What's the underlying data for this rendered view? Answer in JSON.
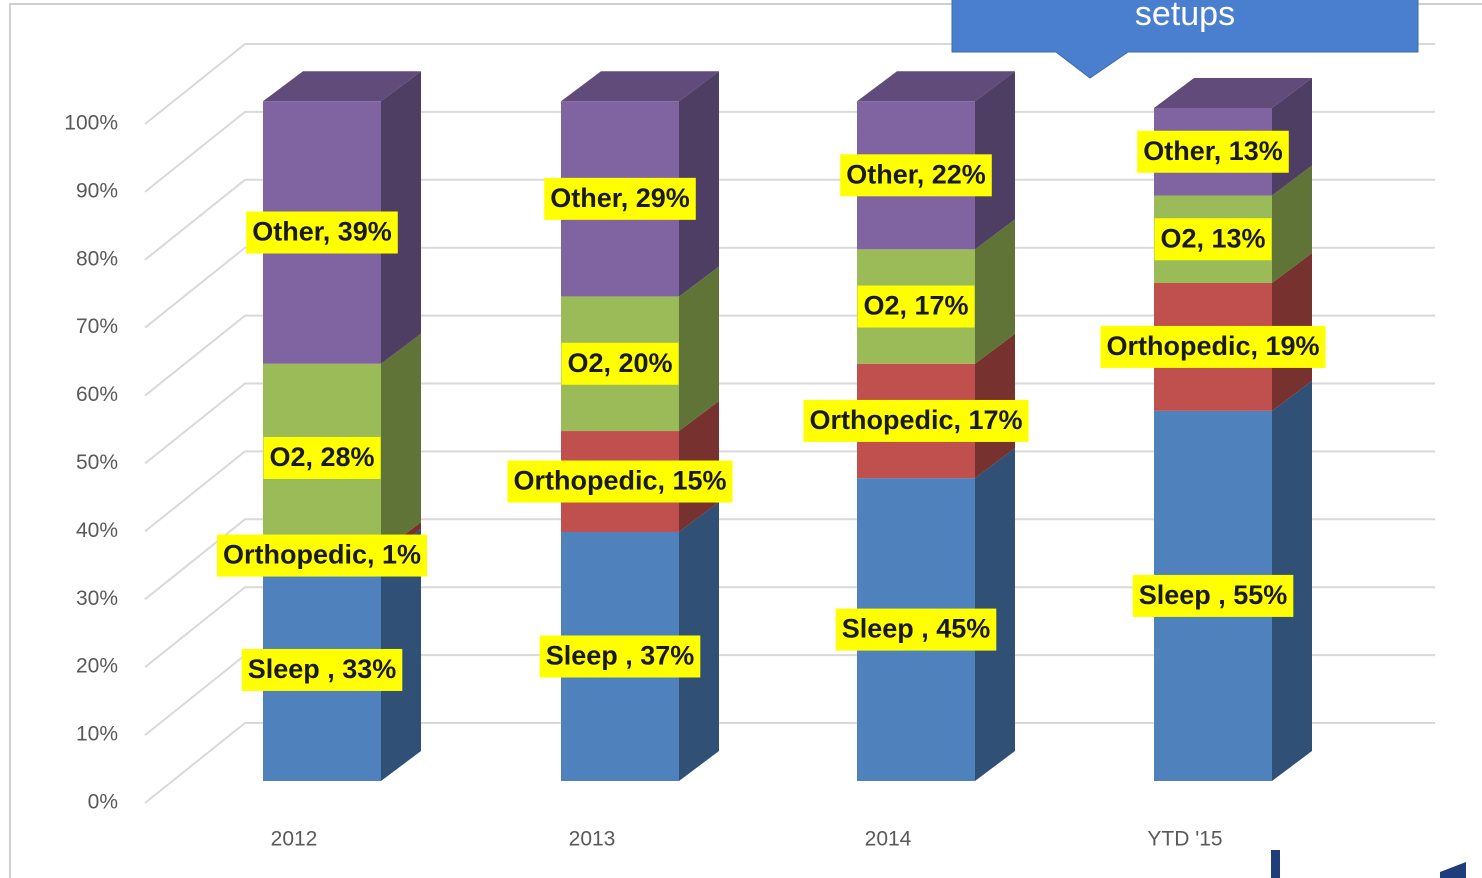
{
  "chart_data": {
    "type": "bar3d_stacked",
    "annotation": "setups",
    "categories": [
      "2012",
      "2013",
      "2014",
      "YTD '15"
    ],
    "series": [
      {
        "name": "Sleep",
        "color": "#4f81bd",
        "values": [
          33,
          37,
          45,
          55
        ],
        "value_labels": [
          "Sleep , 33%",
          "Sleep , 37%",
          "Sleep , 45%",
          "Sleep , 55%"
        ]
      },
      {
        "name": "Orthopedic",
        "color": "#c0504d",
        "values": [
          1,
          15,
          17,
          19
        ],
        "value_labels": [
          "Orthopedic, 1%",
          "Orthopedic, 15%",
          "Orthopedic, 17%",
          "Orthopedic, 19%"
        ]
      },
      {
        "name": "O2",
        "color": "#9bbb59",
        "values": [
          28,
          20,
          17,
          13
        ],
        "value_labels": [
          "O2, 28%",
          "O2, 20%",
          "O2, 17%",
          "O2, 13%"
        ]
      },
      {
        "name": "Other",
        "color": "#8064a2",
        "values": [
          39,
          29,
          22,
          13
        ],
        "value_labels": [
          "Other, 39%",
          "Other, 29%",
          "Other, 22%",
          "Other, 13%"
        ]
      }
    ],
    "ylim": [
      0,
      100
    ],
    "yticks": [
      {
        "value": 0,
        "label": "0%"
      },
      {
        "value": 10,
        "label": "10%"
      },
      {
        "value": 20,
        "label": "20%"
      },
      {
        "value": 30,
        "label": "30%"
      },
      {
        "value": 40,
        "label": "40%"
      },
      {
        "value": 50,
        "label": "50%"
      },
      {
        "value": 60,
        "label": "60%"
      },
      {
        "value": 70,
        "label": "70%"
      },
      {
        "value": 80,
        "label": "80%"
      },
      {
        "value": 90,
        "label": "90%"
      },
      {
        "value": 100,
        "label": "100%"
      }
    ],
    "grid": true
  }
}
